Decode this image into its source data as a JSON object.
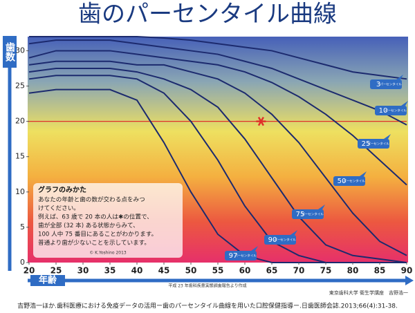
{
  "chart_data": {
    "type": "line",
    "title": "歯のパーセンタイル曲線",
    "y_label": "歯数",
    "x_label": "年齢",
    "x": [
      20,
      25,
      30,
      35,
      40,
      45,
      50,
      55,
      60,
      65,
      70,
      75,
      80,
      85,
      90
    ],
    "xlim": [
      20,
      90
    ],
    "xticks": [
      20,
      25,
      30,
      35,
      40,
      45,
      50,
      55,
      60,
      65,
      70,
      75,
      80,
      85,
      90
    ],
    "ylim": [
      0,
      32
    ],
    "yticks": [
      0,
      5,
      10,
      15,
      20,
      25,
      30
    ],
    "line_color": "#1c2a6e",
    "label_color": "#2f6cc4",
    "percentile_label": "パーセンタイル",
    "series": [
      {
        "name": "3",
        "values": [
          32,
          32,
          32,
          32,
          32,
          31.8,
          31.5,
          31,
          30.5,
          30,
          29,
          28,
          27,
          26.5,
          26
        ]
      },
      {
        "name": "10",
        "values": [
          31,
          31.5,
          31.5,
          31.5,
          31,
          30.5,
          30,
          29.5,
          28.5,
          27.5,
          26,
          24.5,
          23,
          21.5,
          19.5
        ]
      },
      {
        "name": "25",
        "values": [
          29,
          30,
          30,
          30,
          29.5,
          29,
          28.5,
          28,
          27,
          25.5,
          23.5,
          21,
          18,
          14.5,
          11
        ]
      },
      {
        "name": "50",
        "values": [
          28,
          28.5,
          28.5,
          28.5,
          28,
          28,
          27,
          26,
          24,
          21,
          17,
          12,
          7,
          3,
          1
        ]
      },
      {
        "name": "75",
        "values": [
          27,
          27.5,
          27.5,
          27.5,
          27,
          26,
          24.5,
          22,
          17.5,
          12,
          6.5,
          2.5,
          1,
          0.5,
          0
        ]
      },
      {
        "name": "90",
        "values": [
          26,
          26.5,
          26.5,
          26.5,
          26,
          24,
          20,
          14.5,
          8,
          3,
          1,
          0,
          0,
          0,
          0
        ]
      },
      {
        "name": "97",
        "values": [
          24,
          24.5,
          24.5,
          24.5,
          23,
          17,
          10,
          4,
          1,
          0,
          0,
          0,
          0,
          0,
          0
        ]
      }
    ],
    "reference_line": 20,
    "reference_color": "#e0302a",
    "marker": {
      "x": 63,
      "y": 20
    },
    "legend_box": {
      "title": "グラフのみかた",
      "lines": [
        "あなたの年齢と歯の数が交わる点をみつ",
        "けてください。",
        "例えば、63 歳で 20 本の人は✱の位置で、",
        "歯が全部 (32 本) ある状態からみて、",
        "100 人中 75 番目にあることがわかります。",
        "普通より歯が少ないことを示しています。"
      ],
      "credit": "© K.Yoshino 2013"
    },
    "source_note": "平成 23 年歯科疾患実態調査報告より作成",
    "institution": "東京歯科大学 衛生学講座　吉野浩一",
    "citation": "吉野浩一ほか.歯科医療における免疫データの活用ー歯のパーセンタイル曲線を用いた口腔保健指導ー.日歯医師会誌.2013;66(4):31-38."
  }
}
